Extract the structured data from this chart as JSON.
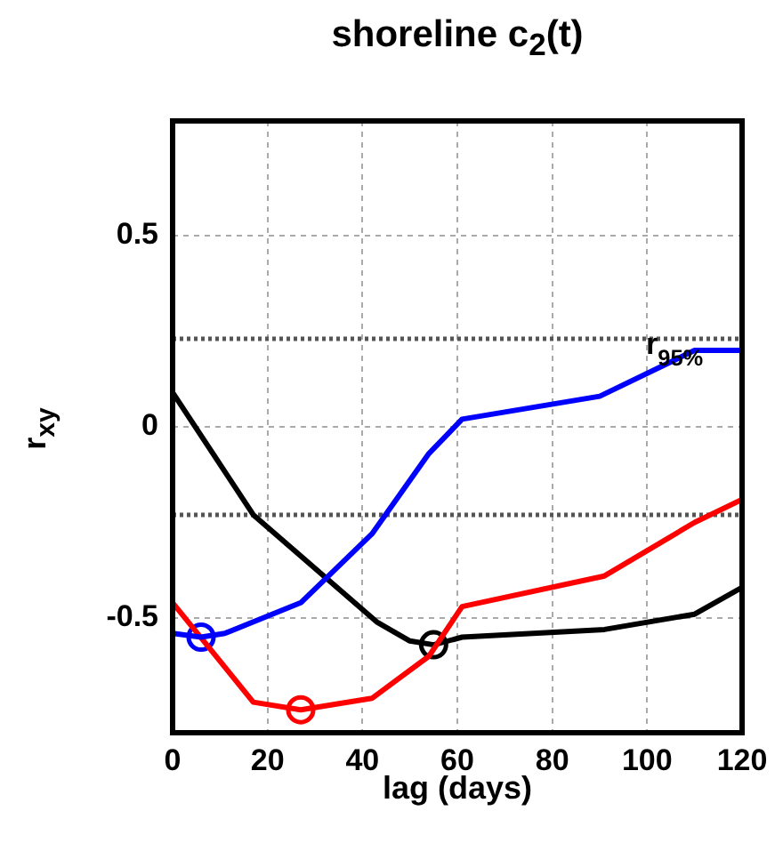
{
  "chart_data": {
    "type": "line",
    "title": "shoreline c$_{2}$(t)",
    "xlabel": "lag (days)",
    "ylabel": "r$_{xy}$",
    "xlim": [
      0,
      120
    ],
    "xticks": [
      0,
      20,
      40,
      60,
      80,
      100,
      120
    ],
    "ylim": [
      -0.8,
      0.8
    ],
    "yticks": [
      -0.5,
      0,
      0.5
    ],
    "grid": true,
    "legend": false,
    "line_style": "solid",
    "series": [
      {
        "color": "#0000ff",
        "x": [
          0,
          6,
          11,
          27,
          42,
          54,
          61,
          90,
          110,
          120
        ],
        "values": [
          -0.54,
          -0.55,
          -0.54,
          -0.46,
          -0.28,
          -0.07,
          0.02,
          0.08,
          0.2,
          0.2
        ]
      },
      {
        "color": "#ff0000",
        "x": [
          0,
          17,
          27,
          42,
          54,
          61,
          91,
          110,
          120
        ],
        "values": [
          -0.46,
          -0.72,
          -0.74,
          -0.71,
          -0.6,
          -0.47,
          -0.39,
          -0.25,
          -0.19
        ]
      },
      {
        "color": "#000000",
        "x": [
          0,
          17,
          43,
          50,
          55,
          61,
          91,
          110,
          120
        ],
        "values": [
          0.09,
          -0.23,
          -0.51,
          -0.56,
          -0.57,
          -0.55,
          -0.53,
          -0.49,
          -0.42
        ]
      },
      {
        "type": "scatter",
        "marker": "circle",
        "color": "#0000ff",
        "x": [
          6
        ],
        "values": [
          -0.55
        ]
      },
      {
        "type": "scatter",
        "marker": "circle",
        "color": "#ff0000",
        "x": [
          27
        ],
        "values": [
          -0.74
        ]
      },
      {
        "type": "scatter",
        "marker": "circle",
        "color": "#000000",
        "x": [
          55
        ],
        "values": [
          -0.57
        ]
      }
    ],
    "ref_lines": [
      {
        "axis": "y",
        "value": 0.23,
        "label": "r$_{95%}$",
        "color": "#555555",
        "line_style": "dotted"
      },
      {
        "axis": "y",
        "value": -0.23,
        "color": "#555555",
        "line_style": "dotted"
      }
    ]
  }
}
